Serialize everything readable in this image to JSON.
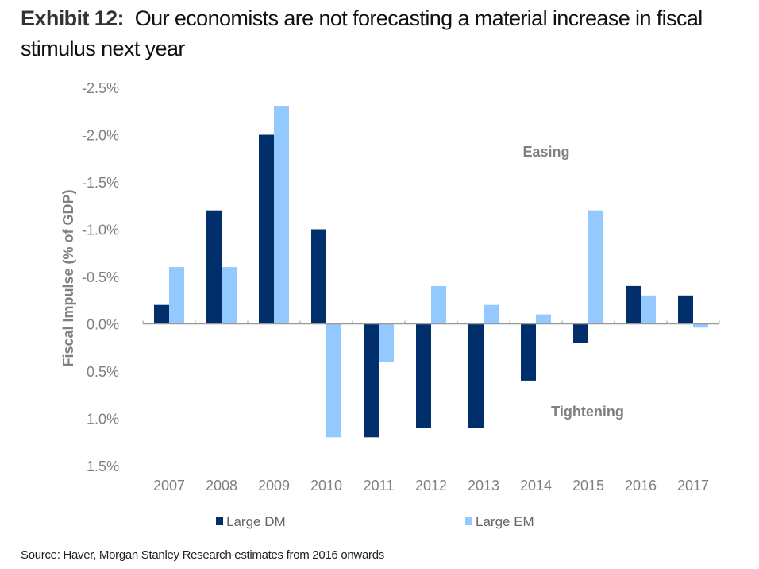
{
  "title": {
    "lead": "Exhibit 12:",
    "text": "Our economists are not forecasting a material increase in fiscal stimulus next year"
  },
  "source": "Source: Haver, Morgan Stanley Research estimates from 2016 onwards",
  "chart_data": {
    "type": "bar",
    "title": "Our economists are not forecasting a material increase in fiscal stimulus next year",
    "xlabel": "",
    "ylabel": "Fiscal Impulse (% of GDP)",
    "y_inverted": true,
    "ylim": [
      -2.5,
      1.5
    ],
    "yticks": [
      -2.5,
      -2.0,
      -1.5,
      -1.0,
      -0.5,
      0.0,
      0.5,
      1.0,
      1.5
    ],
    "ytick_labels": [
      "-2.5%",
      "-2.0%",
      "-1.5%",
      "-1.0%",
      "-0.5%",
      "0.0%",
      "0.5%",
      "1.0%",
      "1.5%"
    ],
    "categories": [
      "2007",
      "2008",
      "2009",
      "2010",
      "2011",
      "2012",
      "2013",
      "2014",
      "2015",
      "2016",
      "2017"
    ],
    "series": [
      {
        "name": "Large DM",
        "color": "#002f6c",
        "values": [
          -0.2,
          -1.2,
          -2.0,
          -1.0,
          1.2,
          1.1,
          1.1,
          0.6,
          0.2,
          -0.4,
          -0.3
        ]
      },
      {
        "name": "Large EM",
        "color": "#93c9ff",
        "values": [
          -0.6,
          -0.6,
          -2.3,
          1.2,
          0.4,
          -0.4,
          -0.2,
          -0.1,
          -1.2,
          -0.3,
          0.04
        ]
      }
    ],
    "annotations": [
      "Easing",
      "Tightening"
    ],
    "grid": false,
    "legend": "bottom"
  }
}
